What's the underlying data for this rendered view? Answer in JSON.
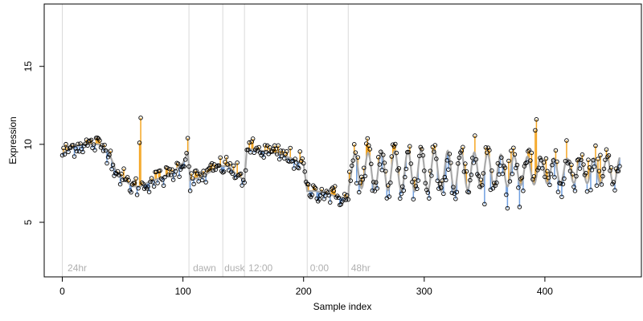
{
  "chart_data": {
    "type": "scatter",
    "xlabel": "Sample index",
    "ylabel": "Expression",
    "xlim": [
      -15,
      480
    ],
    "ylim": [
      1.5,
      19
    ],
    "xticks": [
      0,
      100,
      200,
      300,
      400
    ],
    "yticks": [
      5,
      10,
      15
    ],
    "grid": false,
    "colors": {
      "fit_line": "#a9a9a9",
      "above": "#f5a623",
      "below": "#6f9fe0",
      "vline": "#d9d9d9",
      "phase_label": "#b0b0b0"
    },
    "phase_lines": [
      0,
      105,
      133,
      151,
      203,
      237
    ],
    "phase_labels": [
      {
        "x": 3,
        "text": "24hr"
      },
      {
        "x": 107,
        "text": "dawn"
      },
      {
        "x": 133,
        "text": "dusk"
      },
      {
        "x": 153,
        "text": "12:00"
      },
      {
        "x": 204,
        "text": "0:00"
      },
      {
        "x": 238,
        "text": "48hr"
      }
    ],
    "fit_anchors": [
      [
        0,
        9.4
      ],
      [
        10,
        9.9
      ],
      [
        20,
        10.0
      ],
      [
        30,
        10.0
      ],
      [
        38,
        9.6
      ],
      [
        45,
        8.2
      ],
      [
        52,
        7.7
      ],
      [
        58,
        7.3
      ],
      [
        65,
        7.3
      ],
      [
        72,
        7.6
      ],
      [
        80,
        7.8
      ],
      [
        90,
        8.1
      ],
      [
        100,
        8.8
      ],
      [
        104,
        9.5
      ],
      [
        106,
        7.7
      ],
      [
        115,
        7.9
      ],
      [
        122,
        8.2
      ],
      [
        130,
        8.6
      ],
      [
        138,
        8.6
      ],
      [
        145,
        8.0
      ],
      [
        151,
        7.7
      ],
      [
        153,
        9.7
      ],
      [
        165,
        9.6
      ],
      [
        178,
        9.4
      ],
      [
        190,
        9.1
      ],
      [
        200,
        8.7
      ],
      [
        203,
        7.0
      ],
      [
        210,
        7.0
      ],
      [
        218,
        6.9
      ],
      [
        225,
        6.7
      ],
      [
        232,
        6.6
      ],
      [
        237,
        6.5
      ]
    ],
    "osc_start": 237,
    "osc_end": 462,
    "osc_period": 11,
    "osc_mid": 8.3,
    "osc_amp": 1.05,
    "points_sd_early": 0.6,
    "points_sd_late": 1.2,
    "spikes": [
      [
        65,
        11.7
      ],
      [
        64,
        10.1
      ],
      [
        393,
        11.6
      ],
      [
        392,
        10.9
      ],
      [
        104,
        10.4
      ]
    ]
  }
}
